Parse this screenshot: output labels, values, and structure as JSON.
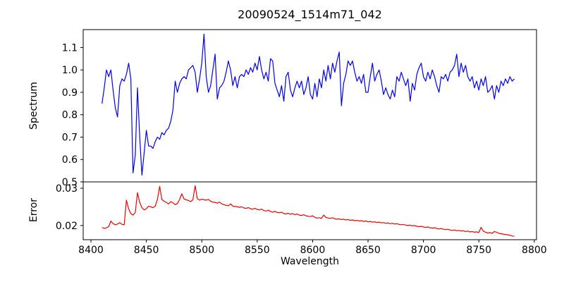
{
  "chart_data": {
    "type": "line",
    "title": "20090524_1514m71_042",
    "xlabel": "Wavelength",
    "grid": false,
    "legend": null,
    "background_color": "#ffffff",
    "axis_color": "#000000",
    "xlim": [
      8393,
      8802
    ],
    "xticks": [
      8400,
      8450,
      8500,
      8550,
      8600,
      8650,
      8700,
      8750,
      8800
    ],
    "x": [
      8410,
      8412,
      8414,
      8416,
      8418,
      8420,
      8422,
      8424,
      8426,
      8428,
      8430,
      8432,
      8434,
      8436,
      8438,
      8440,
      8442,
      8444,
      8446,
      8448,
      8450,
      8452,
      8454,
      8456,
      8458,
      8460,
      8462,
      8464,
      8466,
      8468,
      8470,
      8472,
      8474,
      8476,
      8478,
      8480,
      8482,
      8484,
      8486,
      8488,
      8490,
      8492,
      8494,
      8496,
      8498,
      8500,
      8502,
      8504,
      8506,
      8508,
      8510,
      8512,
      8514,
      8516,
      8518,
      8520,
      8522,
      8524,
      8526,
      8528,
      8530,
      8532,
      8534,
      8536,
      8538,
      8540,
      8542,
      8544,
      8546,
      8548,
      8550,
      8552,
      8554,
      8556,
      8558,
      8560,
      8562,
      8564,
      8566,
      8568,
      8570,
      8572,
      8574,
      8576,
      8578,
      8580,
      8582,
      8584,
      8586,
      8588,
      8590,
      8592,
      8594,
      8596,
      8598,
      8600,
      8602,
      8604,
      8606,
      8608,
      8610,
      8612,
      8614,
      8616,
      8618,
      8620,
      8622,
      8624,
      8626,
      8628,
      8630,
      8632,
      8634,
      8636,
      8638,
      8640,
      8642,
      8644,
      8646,
      8648,
      8650,
      8652,
      8654,
      8656,
      8658,
      8660,
      8662,
      8664,
      8666,
      8668,
      8670,
      8672,
      8674,
      8676,
      8678,
      8680,
      8682,
      8684,
      8686,
      8688,
      8690,
      8692,
      8694,
      8696,
      8698,
      8700,
      8702,
      8704,
      8706,
      8708,
      8710,
      8712,
      8714,
      8716,
      8718,
      8720,
      8722,
      8724,
      8726,
      8728,
      8730,
      8732,
      8734,
      8736,
      8738,
      8740,
      8742,
      8744,
      8746,
      8748,
      8750,
      8752,
      8754,
      8756,
      8758,
      8760,
      8762,
      8764,
      8766,
      8768,
      8770,
      8772,
      8774,
      8776,
      8778,
      8780,
      8782
    ],
    "subplots": [
      {
        "name": "spectrum",
        "ylabel": "Spectrum",
        "color": "#0000ee",
        "ylim": [
          0.5,
          1.18
        ],
        "yticks": [
          "0.5",
          "0.6",
          "0.7",
          "0.8",
          "0.9",
          "1.0",
          "1.1"
        ],
        "show_x_tick_labels": false,
        "values": [
          0.85,
          0.92,
          1.0,
          0.97,
          1.0,
          0.91,
          0.83,
          0.79,
          0.93,
          0.96,
          0.95,
          0.98,
          1.03,
          0.96,
          0.54,
          0.62,
          0.92,
          0.7,
          0.53,
          0.63,
          0.73,
          0.66,
          0.66,
          0.65,
          0.68,
          0.7,
          0.69,
          0.72,
          0.71,
          0.73,
          0.74,
          0.77,
          0.82,
          0.95,
          0.9,
          0.94,
          0.96,
          0.97,
          0.96,
          1.0,
          1.01,
          1.02,
          0.99,
          0.9,
          0.96,
          1.03,
          1.16,
          0.97,
          0.9,
          0.93,
          1.0,
          1.07,
          0.87,
          0.92,
          0.93,
          0.95,
          0.99,
          1.04,
          1.0,
          0.93,
          0.97,
          0.92,
          0.97,
          0.98,
          0.97,
          1.0,
          0.98,
          1.01,
          0.99,
          1.03,
          1.0,
          1.06,
          1.0,
          0.96,
          0.99,
          0.95,
          1.05,
          1.04,
          0.94,
          0.91,
          0.88,
          0.93,
          0.86,
          0.97,
          0.99,
          0.91,
          0.88,
          0.92,
          0.95,
          0.92,
          0.95,
          0.89,
          0.92,
          0.97,
          0.89,
          0.87,
          0.94,
          0.88,
          0.96,
          0.92,
          1.0,
          0.95,
          1.02,
          0.96,
          1.03,
          0.99,
          1.04,
          1.08,
          0.84,
          0.94,
          0.98,
          1.04,
          1.02,
          1.04,
          0.99,
          0.95,
          0.97,
          0.94,
          0.98,
          0.9,
          0.9,
          0.97,
          1.03,
          0.95,
          0.98,
          1.0,
          0.95,
          0.89,
          0.92,
          0.89,
          0.87,
          0.91,
          0.88,
          0.97,
          0.95,
          0.99,
          0.96,
          0.93,
          0.96,
          0.86,
          0.94,
          0.91,
          0.98,
          1.01,
          1.03,
          0.97,
          0.95,
          0.99,
          0.96,
          1.0,
          0.97,
          0.93,
          0.9,
          0.97,
          0.96,
          0.98,
          0.95,
          0.99,
          1.0,
          1.02,
          1.07,
          0.97,
          1.03,
          0.99,
          1.02,
          0.97,
          0.95,
          0.97,
          0.92,
          0.95,
          0.91,
          0.96,
          0.93,
          0.97,
          0.9,
          0.91,
          0.93,
          0.87,
          0.93,
          0.9,
          0.95,
          0.93,
          0.96,
          0.94,
          0.97,
          0.95,
          0.96
        ]
      },
      {
        "name": "error",
        "ylabel": "Error",
        "color": "#ee0000",
        "ylim": [
          0.0162,
          0.0317
        ],
        "yticks": [
          "0.02",
          "0.03"
        ],
        "show_x_tick_labels": true,
        "values": [
          0.0195,
          0.0192,
          0.0194,
          0.0197,
          0.0212,
          0.0205,
          0.0202,
          0.0204,
          0.0208,
          0.0203,
          0.0202,
          0.0268,
          0.0245,
          0.0232,
          0.0228,
          0.0235,
          0.0288,
          0.0262,
          0.0248,
          0.0242,
          0.0245,
          0.0252,
          0.025,
          0.0248,
          0.0252,
          0.027,
          0.0305,
          0.027,
          0.0265,
          0.0262,
          0.0258,
          0.0264,
          0.0261,
          0.0256,
          0.0259,
          0.027,
          0.0285,
          0.0271,
          0.0269,
          0.0267,
          0.0264,
          0.0269,
          0.0307,
          0.0272,
          0.0268,
          0.0271,
          0.0269,
          0.0268,
          0.027,
          0.0265,
          0.0263,
          0.0262,
          0.026,
          0.0263,
          0.0258,
          0.0256,
          0.0254,
          0.0253,
          0.0258,
          0.0252,
          0.0251,
          0.025,
          0.0249,
          0.025,
          0.0247,
          0.0246,
          0.0248,
          0.0245,
          0.0244,
          0.0246,
          0.0243,
          0.0242,
          0.0244,
          0.024,
          0.0239,
          0.0241,
          0.0238,
          0.0236,
          0.0238,
          0.0235,
          0.0234,
          0.0236,
          0.0232,
          0.0231,
          0.0233,
          0.023,
          0.0232,
          0.0229,
          0.0231,
          0.0228,
          0.0227,
          0.0229,
          0.0226,
          0.0225,
          0.0224,
          0.0226,
          0.0222,
          0.022,
          0.0221,
          0.0219,
          0.0228,
          0.0222,
          0.022,
          0.0219,
          0.0221,
          0.0218,
          0.0217,
          0.0218,
          0.0216,
          0.0217,
          0.0215,
          0.0216,
          0.0214,
          0.0215,
          0.0213,
          0.0214,
          0.0212,
          0.0213,
          0.0211,
          0.0212,
          0.021,
          0.0211,
          0.0209,
          0.021,
          0.0208,
          0.0209,
          0.0207,
          0.0208,
          0.0206,
          0.0207,
          0.0205,
          0.0206,
          0.0204,
          0.0205,
          0.0203,
          0.0202,
          0.0203,
          0.0201,
          0.02,
          0.0201,
          0.0199,
          0.02,
          0.0198,
          0.0197,
          0.0198,
          0.0196,
          0.0195,
          0.0196,
          0.0194,
          0.0193,
          0.0194,
          0.0192,
          0.0191,
          0.0192,
          0.019,
          0.0189,
          0.019,
          0.0188,
          0.0187,
          0.0188,
          0.0186,
          0.0187,
          0.0185,
          0.0186,
          0.0184,
          0.0185,
          0.0183,
          0.0184,
          0.0182,
          0.0183,
          0.0181,
          0.0195,
          0.0185,
          0.0182,
          0.018,
          0.0181,
          0.0179,
          0.0184,
          0.0182,
          0.0179,
          0.0178,
          0.0177,
          0.0176,
          0.0175,
          0.0174,
          0.0172,
          0.0171
        ]
      }
    ]
  }
}
